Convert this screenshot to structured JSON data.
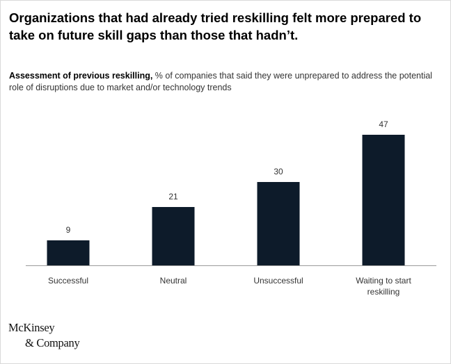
{
  "headline": "Organizations that had already tried reskilling felt more prepared to take on future skill gaps than those that hadn’t.",
  "subtitle": {
    "lead": "Assessment of previous reskilling,",
    "rest": " % of companies that said they were unprepared to address the potential role of disruptions due to market and/or technology trends"
  },
  "logo": {
    "line1": "McKinsey",
    "line2": "& Company"
  },
  "colors": {
    "bar": "#0d1b2a",
    "axis": "#999999",
    "label": "#333333"
  },
  "chart_data": {
    "type": "bar",
    "categories": [
      [
        "Successful"
      ],
      [
        "Neutral"
      ],
      [
        "Unsuccessful"
      ],
      [
        "Waiting to start",
        "reskilling"
      ]
    ],
    "values": [
      9,
      21,
      30,
      47
    ],
    "title": "",
    "xlabel": "",
    "ylabel": "",
    "ylim": [
      0,
      50
    ],
    "grid": false,
    "legend": "none"
  }
}
